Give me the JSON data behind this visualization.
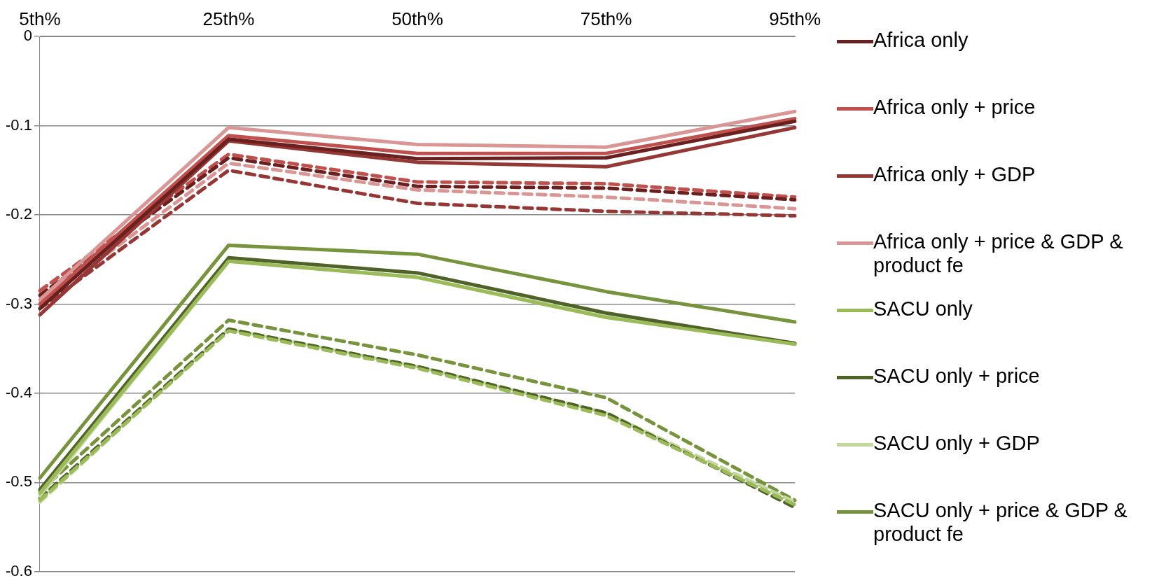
{
  "chart_data": {
    "type": "line",
    "categories": [
      "5th%",
      "25th%",
      "50th%",
      "75th%",
      "95th%"
    ],
    "ylim": [
      -0.6,
      0
    ],
    "yticks": [
      -0.6,
      -0.5,
      -0.4,
      -0.3,
      -0.2,
      -0.1,
      0
    ],
    "grid": "y",
    "legend": "right",
    "marker": "none",
    "series": [
      {
        "name": "Africa only",
        "color": "#6b2020",
        "line_style": "solid",
        "values": [
          -0.305,
          -0.115,
          -0.137,
          -0.136,
          -0.095
        ]
      },
      {
        "name": "Africa only + price",
        "color": "#c0504d",
        "line_style": "solid",
        "values": [
          -0.3,
          -0.111,
          -0.131,
          -0.131,
          -0.092
        ]
      },
      {
        "name": "Africa only + GDP",
        "color": "#953735",
        "line_style": "solid",
        "values": [
          -0.312,
          -0.117,
          -0.141,
          -0.146,
          -0.102
        ]
      },
      {
        "name": "Africa only + price & GDP & product fe",
        "color": "#d99694",
        "line_style": "solid",
        "values": [
          -0.295,
          -0.102,
          -0.121,
          -0.124,
          -0.084
        ]
      },
      {
        "name": "SACU only",
        "color": "#9bbb59",
        "line_style": "solid",
        "values": [
          -0.512,
          -0.252,
          -0.27,
          -0.315,
          -0.345
        ]
      },
      {
        "name": "SACU only + price",
        "color": "#4f6228",
        "line_style": "solid",
        "values": [
          -0.508,
          -0.248,
          -0.265,
          -0.31,
          -0.344
        ]
      },
      {
        "name": "SACU only + GDP",
        "color": "#c3d69b",
        "line_style": "solid",
        "values": [
          -0.515,
          -0.252,
          -0.27,
          -0.314,
          -0.345
        ]
      },
      {
        "name": "SACU only + price & GDP & product fe",
        "color": "#77933c",
        "line_style": "solid",
        "values": [
          -0.495,
          -0.234,
          -0.244,
          -0.286,
          -0.32
        ]
      },
      {
        "color": "#6b2020",
        "line_style": "dashed",
        "values": [
          -0.29,
          -0.136,
          -0.168,
          -0.17,
          -0.183
        ]
      },
      {
        "color": "#c0504d",
        "line_style": "dashed",
        "values": [
          -0.285,
          -0.132,
          -0.163,
          -0.165,
          -0.18
        ]
      },
      {
        "color": "#953735",
        "line_style": "dashed",
        "values": [
          -0.305,
          -0.15,
          -0.187,
          -0.196,
          -0.201
        ]
      },
      {
        "color": "#d99694",
        "line_style": "dashed",
        "values": [
          -0.3,
          -0.142,
          -0.172,
          -0.18,
          -0.193
        ]
      },
      {
        "color": "#9bbb59",
        "line_style": "dashed",
        "values": [
          -0.52,
          -0.33,
          -0.372,
          -0.425,
          -0.525
        ]
      },
      {
        "color": "#4f6228",
        "line_style": "dashed",
        "values": [
          -0.518,
          -0.328,
          -0.37,
          -0.422,
          -0.528
        ]
      },
      {
        "color": "#c3d69b",
        "line_style": "dashed",
        "values": [
          -0.522,
          -0.328,
          -0.37,
          -0.422,
          -0.522
        ]
      },
      {
        "color": "#77933c",
        "line_style": "dashed",
        "values": [
          -0.51,
          -0.318,
          -0.357,
          -0.405,
          -0.52
        ]
      }
    ]
  }
}
